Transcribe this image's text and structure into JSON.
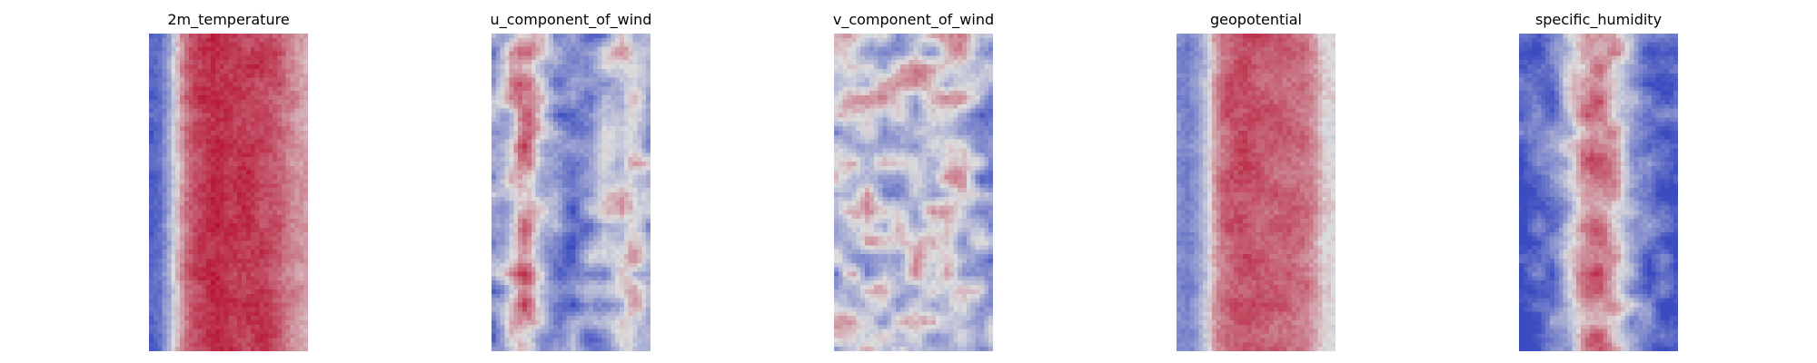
{
  "chart_data": [
    {
      "type": "heatmap",
      "title": "2m_temperature",
      "xlabel": "",
      "ylabel": "",
      "axis": "off",
      "colormap": "coolwarm",
      "grid": false,
      "color_range": [
        "#3b4cc0",
        "#dddddd",
        "#b40426"
      ],
      "data_columns": [
        -0.85,
        -0.75,
        -0.35,
        0.2,
        0.55,
        0.7,
        0.75,
        0.78,
        0.78,
        0.77,
        0.76,
        0.75,
        0.72,
        0.68,
        0.6,
        0.48,
        0.35,
        0.28
      ]
    },
    {
      "type": "heatmap",
      "title": "u_component_of_wind",
      "xlabel": "",
      "ylabel": "",
      "axis": "off",
      "colormap": "coolwarm",
      "grid": false,
      "color_range": [
        "#3b4cc0",
        "#dddddd",
        "#b40426"
      ],
      "data_columns": [
        -0.5,
        -0.3,
        0.1,
        0.35,
        0.3,
        -0.1,
        -0.4,
        -0.6,
        -0.7,
        -0.65,
        -0.55,
        -0.45,
        -0.3,
        -0.15,
        0.0,
        0.1,
        -0.1,
        -0.3
      ]
    },
    {
      "type": "heatmap",
      "title": "v_component_of_wind",
      "xlabel": "",
      "ylabel": "",
      "axis": "off",
      "colormap": "coolwarm",
      "grid": false,
      "color_range": [
        "#3b4cc0",
        "#dddddd",
        "#b40426"
      ],
      "data_columns": [
        -0.1,
        -0.05,
        -0.1,
        -0.15,
        -0.1,
        -0.05,
        -0.1,
        -0.15,
        -0.1,
        -0.05,
        -0.1,
        -0.15,
        -0.1,
        -0.05,
        -0.1,
        -0.2,
        -0.35,
        -0.4
      ]
    },
    {
      "type": "heatmap",
      "title": "geopotential",
      "xlabel": "",
      "ylabel": "",
      "axis": "off",
      "colormap": "coolwarm",
      "grid": false,
      "color_range": [
        "#3b4cc0",
        "#dddddd",
        "#b40426"
      ],
      "data_columns": [
        -0.55,
        -0.65,
        -0.5,
        -0.2,
        0.3,
        0.55,
        0.62,
        0.65,
        0.64,
        0.62,
        0.6,
        0.58,
        0.55,
        0.5,
        0.45,
        0.3,
        0.05,
        0.0
      ]
    },
    {
      "type": "heatmap",
      "title": "specific_humidity",
      "xlabel": "",
      "ylabel": "",
      "axis": "off",
      "colormap": "coolwarm",
      "grid": false,
      "color_range": [
        "#3b4cc0",
        "#dddddd",
        "#b40426"
      ],
      "data_columns": [
        -0.9,
        -0.85,
        -0.8,
        -0.7,
        -0.55,
        -0.3,
        0.05,
        0.35,
        0.45,
        0.4,
        0.3,
        0.05,
        -0.3,
        -0.55,
        -0.7,
        -0.8,
        -0.85,
        -0.9
      ]
    }
  ]
}
